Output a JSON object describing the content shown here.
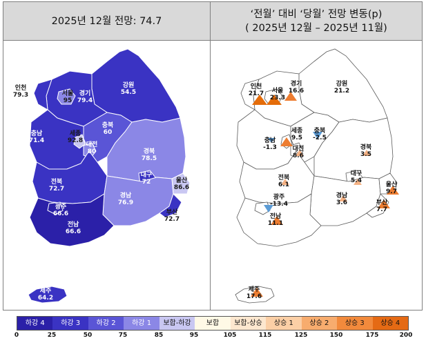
{
  "left_title": "2025년 12월 전망: 74.7",
  "right_title_line1": "‘전월’ 대비 ‘당월’ 전망 변동(p)",
  "right_title_line2": "( 2025년 12월 –   2025년 11월)",
  "left_labels": [
    {
      "name": "인천",
      "value": "79.3"
    },
    {
      "name": "서울",
      "value": "95"
    },
    {
      "name": "경기",
      "value": "79.4"
    },
    {
      "name": "강원",
      "value": "54.5"
    },
    {
      "name": "충북",
      "value": "60"
    },
    {
      "name": "충남",
      "value": "71.4"
    },
    {
      "name": "세종",
      "value": "92.8"
    },
    {
      "name": "대전",
      "value": "80"
    },
    {
      "name": "경북",
      "value": "78.5"
    },
    {
      "name": "전북",
      "value": "72.7"
    },
    {
      "name": "대구",
      "value": "72"
    },
    {
      "name": "울산",
      "value": "86.6"
    },
    {
      "name": "경남",
      "value": "76.9"
    },
    {
      "name": "광주",
      "value": "66.6"
    },
    {
      "name": "전남",
      "value": "66.6"
    },
    {
      "name": "부산",
      "value": "72.7"
    },
    {
      "name": "제주",
      "value": "64.2"
    }
  ],
  "right_labels": [
    {
      "name": "인천",
      "value": "21.7"
    },
    {
      "name": "서울",
      "value": "23.3"
    },
    {
      "name": "경기",
      "value": "16.6"
    },
    {
      "name": "강원",
      "value": "21.2"
    },
    {
      "name": "세종",
      "value": "9.5"
    },
    {
      "name": "충북",
      "value": "-2.5"
    },
    {
      "name": "충남",
      "value": "-1.3"
    },
    {
      "name": "대전",
      "value": "8.6"
    },
    {
      "name": "경북",
      "value": "3.5"
    },
    {
      "name": "전북",
      "value": "6.1"
    },
    {
      "name": "대구",
      "value": "5.4"
    },
    {
      "name": "울산",
      "value": "9.7"
    },
    {
      "name": "광주",
      "value": "-13.4"
    },
    {
      "name": "경남",
      "value": "3.6"
    },
    {
      "name": "부산",
      "value": "7.7"
    },
    {
      "name": "전남",
      "value": "11.1"
    },
    {
      "name": "제주",
      "value": "17.6"
    }
  ],
  "legend": [
    {
      "label": "하강 4",
      "color": "#2b20a8",
      "text_color": "#ffffff"
    },
    {
      "label": "하강 3",
      "color": "#3a33c3",
      "text_color": "#ffffff"
    },
    {
      "label": "하강 2",
      "color": "#5a55d6",
      "text_color": "#ffffff"
    },
    {
      "label": "하강 1",
      "color": "#8b87e6",
      "text_color": "#ffffff"
    },
    {
      "label": "보합-하강",
      "color": "#c9c7f2",
      "text_color": "#111111"
    },
    {
      "label": "보합",
      "color": "#fff9e6",
      "text_color": "#111111"
    },
    {
      "label": "보합-상승",
      "color": "#fde7cf",
      "text_color": "#111111"
    },
    {
      "label": "상승 1",
      "color": "#fbcfa6",
      "text_color": "#111111"
    },
    {
      "label": "상승 2",
      "color": "#f7ac6e",
      "text_color": "#111111"
    },
    {
      "label": "상승 3",
      "color": "#f28a3c",
      "text_color": "#111111"
    },
    {
      "label": "상승 4",
      "color": "#e56a14",
      "text_color": "#111111"
    }
  ],
  "legend_ticks": [
    "0",
    "25",
    "50",
    "75",
    "85",
    "95",
    "105",
    "115",
    "125",
    "150",
    "175",
    "200"
  ]
}
